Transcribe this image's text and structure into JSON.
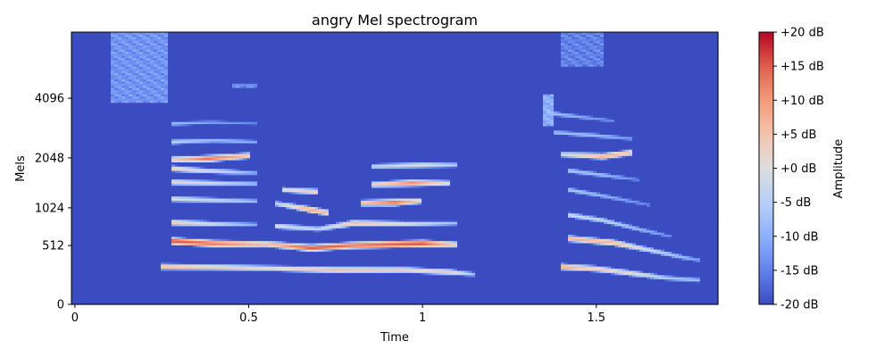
{
  "chart_data": {
    "type": "heatmap",
    "title": "angry Mel spectrogram",
    "xlabel": "Time",
    "ylabel": "Mels",
    "xlim": [
      -0.01,
      1.85
    ],
    "x_ticks": [
      0,
      0.5,
      1,
      1.5
    ],
    "x_tick_labels": [
      "0",
      "0.5",
      "1",
      "1.5"
    ],
    "y_axis_scale": "mel",
    "ylim_hz": [
      0,
      8192
    ],
    "y_ticks_hz": [
      0,
      512,
      1024,
      2048,
      4096
    ],
    "y_tick_labels": [
      "0",
      "512",
      "1024",
      "2048",
      "4096"
    ],
    "colorbar": {
      "label": "Amplitude",
      "range_db": [
        -20,
        20
      ],
      "ticks": [
        20,
        15,
        10,
        5,
        0,
        -5,
        -10,
        -15,
        -20
      ],
      "tick_labels": [
        "+20 dB",
        "+15 dB",
        "+10 dB",
        "+5 dB",
        "+0 dB",
        "-5 dB",
        "-10 dB",
        "-15 dB",
        "-20 dB"
      ],
      "colormap": "coolwarm"
    },
    "background_db": -20,
    "harmonic_tracks": [
      {
        "t": [
          0.25,
          0.4,
          0.55,
          0.75,
          0.95,
          1.08,
          1.15
        ],
        "hz": [
          300,
          295,
          285,
          270,
          270,
          250,
          230
        ],
        "db": [
          6,
          3,
          1,
          6,
          3,
          3,
          -8
        ]
      },
      {
        "t": [
          0.28,
          0.4,
          0.55,
          0.68,
          0.8,
          1.0,
          1.1
        ],
        "hz": [
          570,
          540,
          535,
          490,
          520,
          540,
          530
        ],
        "db": [
          16,
          13,
          5,
          16,
          13,
          16,
          2
        ]
      },
      {
        "t": [
          0.28,
          0.4,
          0.52
        ],
        "hz": [
          810,
          790,
          780
        ],
        "db": [
          4,
          -2,
          -10
        ]
      },
      {
        "t": [
          0.58,
          0.7,
          0.8,
          0.95,
          1.1
        ],
        "hz": [
          760,
          720,
          800,
          790,
          800
        ],
        "db": [
          0,
          -4,
          6,
          0,
          -8
        ]
      },
      {
        "t": [
          0.28,
          0.4,
          0.52
        ],
        "hz": [
          1180,
          1160,
          1140
        ],
        "db": [
          0,
          -3,
          -8
        ]
      },
      {
        "t": [
          0.58,
          0.68,
          0.73
        ],
        "hz": [
          1100,
          1000,
          950
        ],
        "db": [
          -3,
          8,
          5
        ]
      },
      {
        "t": [
          0.82,
          0.92,
          1.0
        ],
        "hz": [
          1110,
          1120,
          1150
        ],
        "db": [
          6,
          14,
          2
        ]
      },
      {
        "t": [
          0.28,
          0.4,
          0.52
        ],
        "hz": [
          1500,
          1480,
          1470
        ],
        "db": [
          2,
          -2,
          -8
        ]
      },
      {
        "t": [
          0.6,
          0.7
        ],
        "hz": [
          1350,
          1310
        ],
        "db": [
          0,
          4
        ]
      },
      {
        "t": [
          0.85,
          0.97,
          1.08
        ],
        "hz": [
          1450,
          1480,
          1480
        ],
        "db": [
          2,
          12,
          0
        ]
      },
      {
        "t": [
          0.28,
          0.35,
          0.45,
          0.52
        ],
        "hz": [
          1800,
          1760,
          1720,
          1700
        ],
        "db": [
          4,
          0,
          -4,
          -10
        ]
      },
      {
        "t": [
          0.85,
          1.0,
          1.1
        ],
        "hz": [
          1850,
          1880,
          1880
        ],
        "db": [
          -4,
          0,
          -6
        ]
      },
      {
        "t": [
          0.28,
          0.38,
          0.5
        ],
        "hz": [
          2020,
          2040,
          2120
        ],
        "db": [
          4,
          14,
          6
        ]
      },
      {
        "t": [
          0.28,
          0.4,
          0.52
        ],
        "hz": [
          2500,
          2550,
          2500
        ],
        "db": [
          -4,
          -8,
          -10
        ]
      },
      {
        "t": [
          0.28,
          0.4,
          0.52
        ],
        "hz": [
          3100,
          3150,
          3100
        ],
        "db": [
          -8,
          -12,
          -14
        ]
      },
      {
        "t": [
          1.4,
          1.5,
          1.6,
          1.7,
          1.8
        ],
        "hz": [
          300,
          280,
          240,
          200,
          180
        ],
        "db": [
          8,
          4,
          2,
          -6,
          -8
        ]
      },
      {
        "t": [
          1.42,
          1.55,
          1.65,
          1.75,
          1.8
        ],
        "hz": [
          600,
          550,
          470,
          390,
          360
        ],
        "db": [
          8,
          6,
          -2,
          -8,
          -12
        ]
      },
      {
        "t": [
          1.42,
          1.52,
          1.62,
          1.72
        ],
        "hz": [
          920,
          840,
          720,
          620
        ],
        "db": [
          -2,
          -4,
          -8,
          -14
        ]
      },
      {
        "t": [
          1.42,
          1.55,
          1.65
        ],
        "hz": [
          1350,
          1200,
          1080
        ],
        "db": [
          -6,
          -10,
          -14
        ]
      },
      {
        "t": [
          1.42,
          1.52,
          1.62
        ],
        "hz": [
          1750,
          1650,
          1550
        ],
        "db": [
          -6,
          -8,
          -14
        ]
      },
      {
        "t": [
          1.4,
          1.52,
          1.6
        ],
        "hz": [
          2150,
          2100,
          2200
        ],
        "db": [
          -2,
          8,
          4
        ]
      },
      {
        "t": [
          1.38,
          1.5,
          1.6
        ],
        "hz": [
          2800,
          2700,
          2600
        ],
        "db": [
          -8,
          -8,
          -12
        ]
      },
      {
        "t": [
          1.36,
          1.45,
          1.55
        ],
        "hz": [
          3500,
          3350,
          3200
        ],
        "db": [
          -6,
          -10,
          -14
        ]
      }
    ],
    "noise_regions": [
      {
        "t": [
          0.1,
          0.27
        ],
        "hz": [
          3900,
          8192
        ],
        "db": -13
      },
      {
        "t": [
          1.35,
          1.38
        ],
        "hz": [
          3000,
          4300
        ],
        "db": -10
      },
      {
        "t": [
          1.4,
          1.52
        ],
        "hz": [
          5800,
          8192
        ],
        "db": -15
      },
      {
        "t": [
          0.45,
          0.52
        ],
        "hz": [
          4600,
          4800
        ],
        "db": -14
      }
    ]
  }
}
